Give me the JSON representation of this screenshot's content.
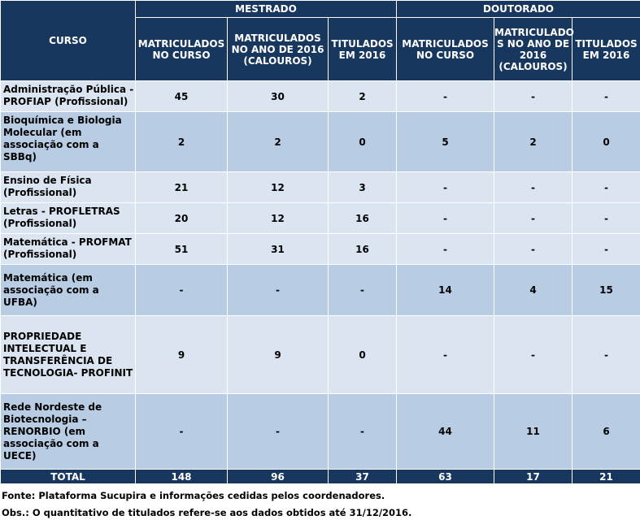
{
  "header": {
    "curso": "CURSO",
    "mestrado": "MESTRADO",
    "doutorado": "DOUTORADO",
    "cols": [
      "MATRICULADOS NO CURSO",
      "MATRICULADOS NO ANO DE 2016 (CALOUROS)",
      "TITULADOS EM 2016",
      "MATRICULADOS NO CURSO",
      "MATRICULADO S NO ANO DE 2016 (CALOUROS)",
      "TITULADOS EM 2016"
    ]
  },
  "rows": [
    {
      "curso": "Administração Pública - PROFIAP (Profissional)",
      "v": [
        "45",
        "30",
        "2",
        "-",
        "-",
        "-"
      ]
    },
    {
      "curso": "Bioquímica e Biologia Molecular (em associação com a SBBq)",
      "v": [
        "2",
        "2",
        "0",
        "5",
        "2",
        "0"
      ]
    },
    {
      "curso": "Ensino de Física (Profissional)",
      "v": [
        "21",
        "12",
        "3",
        "-",
        "-",
        "-"
      ]
    },
    {
      "curso": "Letras - PROFLETRAS (Profissional)",
      "v": [
        "20",
        "12",
        "16",
        "-",
        "-",
        "-"
      ]
    },
    {
      "curso": "Matemática - PROFMAT (Profissional)",
      "v": [
        "51",
        "31",
        "16",
        "-",
        "-",
        "-"
      ]
    },
    {
      "curso": "Matemática (em associação com a UFBA)",
      "v": [
        "-",
        "-",
        "-",
        "14",
        "4",
        "15"
      ]
    },
    {
      "curso": "PROPRIEDADE INTELECTUAL E TRANSFERÊNCIA DE TECNOLOGIA- PROFINIT",
      "v": [
        "9",
        "9",
        "0",
        "-",
        "-",
        "-"
      ]
    },
    {
      "curso": "Rede Nordeste de Biotecnologia – RENORBIO (em associação com a UECE)",
      "v": [
        "-",
        "-",
        "-",
        "44",
        "11",
        "6"
      ]
    }
  ],
  "total": {
    "label": "TOTAL",
    "v": [
      "148",
      "96",
      "37",
      "63",
      "17",
      "21"
    ]
  },
  "footer": {
    "fonte": "Fonte: Plataforma Sucupira e informações cedidas pelos coordenadores.",
    "obs": "Obs.: O quantitativo de titulados refere-se aos dados obtidos até 31/12/2016."
  }
}
